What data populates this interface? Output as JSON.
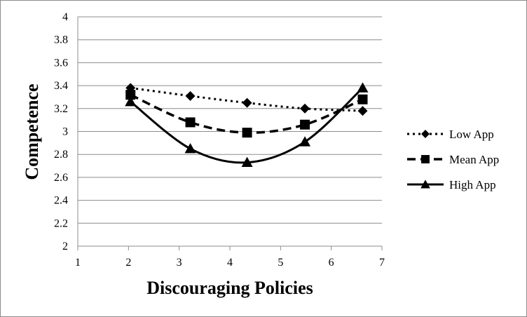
{
  "chart_data": {
    "type": "line",
    "xlabel": "Discouraging Policies",
    "ylabel": "Competence",
    "xlim": [
      1,
      7
    ],
    "ylim": [
      2,
      4
    ],
    "x_ticks": [
      "1",
      "2",
      "3",
      "4",
      "5",
      "6",
      "7"
    ],
    "y_ticks": [
      "2",
      "2.2",
      "2.4",
      "2.6",
      "2.8",
      "3",
      "3.2",
      "3.4",
      "3.6",
      "3.8",
      "4"
    ],
    "grid": "horizontal",
    "legend_position": "right",
    "x": [
      2.04,
      3.22,
      4.34,
      5.48,
      6.62
    ],
    "series": [
      {
        "name": "Low App",
        "values": [
          3.38,
          3.31,
          3.25,
          3.2,
          3.18
        ],
        "marker": "diamond",
        "line": "dotted",
        "color": "#000000"
      },
      {
        "name": "Mean App",
        "values": [
          3.32,
          3.08,
          2.99,
          3.06,
          3.28
        ],
        "marker": "square",
        "line": "dashed",
        "color": "#000000"
      },
      {
        "name": "High App",
        "values": [
          3.26,
          2.85,
          2.73,
          2.91,
          3.38
        ],
        "marker": "triangle",
        "line": "solid",
        "color": "#000000"
      }
    ]
  }
}
